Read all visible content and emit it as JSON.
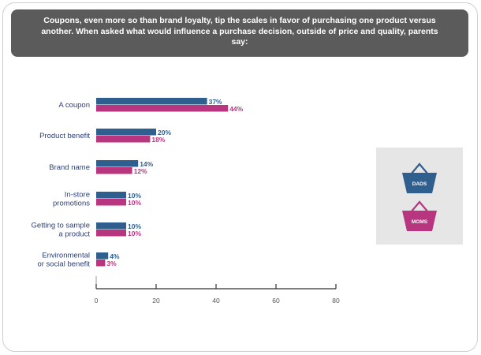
{
  "header": {
    "text": "Coupons, even more so than brand loyalty, tip the scales in favor of purchasing one product versus another. When asked what would influence a purchase decision, outside of price and quality, parents say:"
  },
  "legend": {
    "dads_label": "DADS",
    "moms_label": "MOMS"
  },
  "colors": {
    "dads": "#2f5f8f",
    "moms": "#b8357f",
    "banner": "#5b5b5b",
    "legend_bg": "#e6e6e6"
  },
  "chart_data": {
    "type": "bar",
    "orientation": "horizontal",
    "categories": [
      "A coupon",
      "Product benefit",
      "Brand name",
      "In-store promotions",
      "Getting to sample a product",
      "Environmental or social benefit"
    ],
    "category_lines": [
      [
        "A coupon"
      ],
      [
        "Product benefit"
      ],
      [
        "Brand name"
      ],
      [
        "In-store",
        "promotions"
      ],
      [
        "Getting to sample",
        "a product"
      ],
      [
        "Environmental",
        "or social benefit"
      ]
    ],
    "series": [
      {
        "name": "DADS",
        "values": [
          37,
          20,
          14,
          10,
          10,
          4
        ],
        "labels": [
          "37%",
          "20%",
          "14%",
          "10%",
          "10%",
          "4%"
        ]
      },
      {
        "name": "MOMS",
        "values": [
          44,
          18,
          12,
          10,
          10,
          3
        ],
        "labels": [
          "44%",
          "18%",
          "12%",
          "10%",
          "10%",
          "3%"
        ]
      }
    ],
    "xlim": [
      0,
      80
    ],
    "xticks": [
      "0",
      "20",
      "40",
      "60",
      "80"
    ],
    "xtick_values": [
      0,
      20,
      40,
      60,
      80
    ],
    "legend_position": "right"
  }
}
